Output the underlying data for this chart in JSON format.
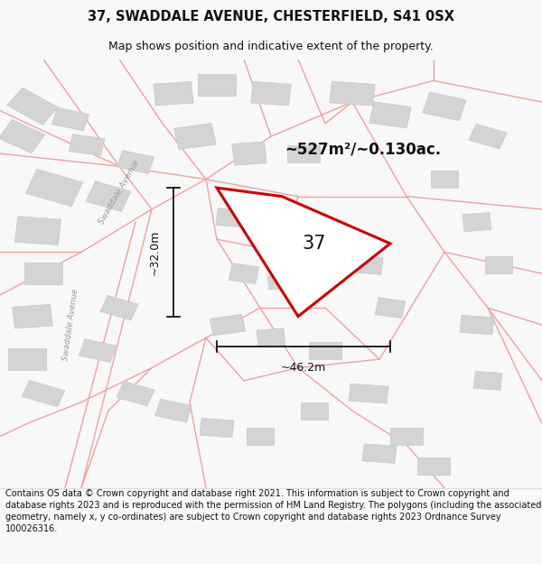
{
  "title": "37, SWADDALE AVENUE, CHESTERFIELD, S41 0SX",
  "subtitle": "Map shows position and indicative extent of the property.",
  "footer": "Contains OS data © Crown copyright and database right 2021. This information is subject to Crown copyright and database rights 2023 and is reproduced with the permission of HM Land Registry. The polygons (including the associated geometry, namely x, y co-ordinates) are subject to Crown copyright and database rights 2023 Ordnance Survey 100026316.",
  "area_label": "~527m²/~0.130ac.",
  "number_label": "37",
  "dim_vertical": "~32.0m",
  "dim_horizontal": "~46.2m",
  "street_label_1": "Swaddale Avenue",
  "street_label_2": "Swaddale Avenue",
  "bg_color": "#f8f8f8",
  "map_bg": "#f8f8f8",
  "plot_color_red": "#cc0000",
  "street_line_color": "#f0a0a0",
  "building_color": "#d4d4d4",
  "building_edge": "#c8c8c8",
  "title_fontsize": 10.5,
  "subtitle_fontsize": 9,
  "footer_fontsize": 7.0,
  "title_color": "#111111",
  "dim_color": "#000000",
  "road_lw": 1.0,
  "plot_lw": 2.2
}
